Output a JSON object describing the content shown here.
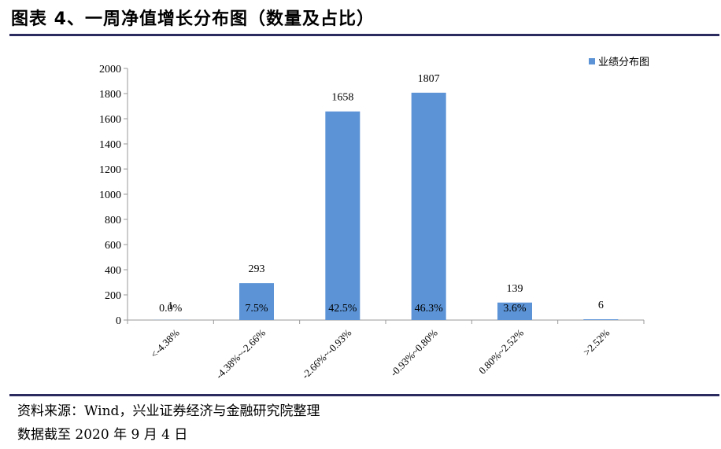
{
  "page": {
    "title": "图表 4、一周净值增长分布图（数量及占比）",
    "source": "资料来源：Wind，兴业证券经济与金融研究院整理",
    "date": "数据截至 2020 年 9 月 4 日"
  },
  "chart_data": {
    "type": "bar",
    "categories": [
      "<-4.38%",
      "-4.38%~-2.66%",
      "-2.66%~-0.93%",
      "-0.93%~0.80%",
      "0.80%~2.52%",
      ">2.52%"
    ],
    "series": [
      {
        "name": "业绩分布图",
        "values": [
          1,
          293,
          1658,
          1807,
          139,
          6
        ],
        "shares": [
          "0.0%",
          "7.5%",
          "42.5%",
          "46.3%",
          "3.6%",
          ""
        ]
      }
    ],
    "yticks": [
      "0",
      "200",
      "400",
      "600",
      "800",
      "1000",
      "1200",
      "1400",
      "1600",
      "1800",
      "2000"
    ],
    "ylim": [
      0,
      2000
    ],
    "grid": false,
    "legend_position": "top-right",
    "bar_color": "#5b93d6",
    "axis_color": "#999999"
  }
}
